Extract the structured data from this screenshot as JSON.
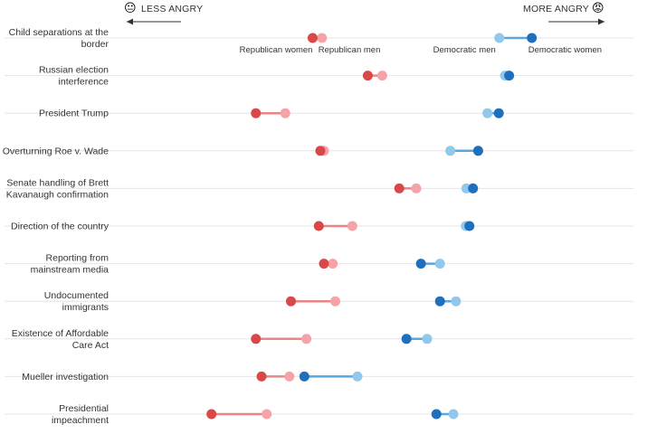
{
  "chart_data": {
    "type": "dumbbell",
    "scale": {
      "left_label": "LESS ANGRY",
      "right_label": "MORE ANGRY",
      "left_emoji": "😐",
      "right_emoji": "😡",
      "range": [
        0,
        100
      ]
    },
    "series": [
      {
        "name": "Republican women",
        "color": "#d94848"
      },
      {
        "name": "Republican men",
        "color": "#f5a3a8"
      },
      {
        "name": "Democratic men",
        "color": "#92c8eb"
      },
      {
        "name": "Democratic women",
        "color": "#1f6fbf"
      }
    ],
    "connector_colors": {
      "republican": "#e98585",
      "democratic": "#5aa7e0"
    },
    "rows": [
      {
        "label": [
          "Child separations at the",
          "border"
        ],
        "rep_women": 37.8,
        "rep_men": 39.6,
        "dem_men": 74.0,
        "dem_women": 80.3
      },
      {
        "label": [
          "Russian election",
          "interference"
        ],
        "rep_women": 48.5,
        "rep_men": 51.3,
        "dem_men": 75.1,
        "dem_women": 75.9
      },
      {
        "label": [
          "President Trump"
        ],
        "rep_women": 26.8,
        "rep_men": 32.5,
        "dem_men": 71.7,
        "dem_women": 73.9
      },
      {
        "label": [
          "Overturning Roe v. Wade"
        ],
        "rep_women": 39.3,
        "rep_men": 40.0,
        "dem_men": 64.5,
        "dem_women": 69.9
      },
      {
        "label": [
          "Senate handling of Brett",
          "Kavanaugh confirmation"
        ],
        "rep_women": 54.6,
        "rep_men": 57.9,
        "dem_men": 67.6,
        "dem_women": 68.9
      },
      {
        "label": [
          "Direction of the country"
        ],
        "rep_women": 39.0,
        "rep_men": 45.5,
        "dem_men": 67.5,
        "dem_women": 68.2
      },
      {
        "label": [
          "Reporting from",
          "mainstream media"
        ],
        "rep_women": 40.0,
        "rep_men": 41.7,
        "dem_men": 62.5,
        "dem_women": 58.8
      },
      {
        "label": [
          "Undocumented",
          "immigrants"
        ],
        "rep_women": 33.6,
        "rep_men": 42.2,
        "dem_men": 65.6,
        "dem_women": 62.5
      },
      {
        "label": [
          "Existence of Affordable",
          "Care Act"
        ],
        "rep_women": 26.8,
        "rep_men": 36.6,
        "dem_men": 60.0,
        "dem_women": 56.0
      },
      {
        "label": [
          "Mueller investigation"
        ],
        "rep_women": 27.9,
        "rep_men": 33.3,
        "dem_men": 46.5,
        "dem_women": 36.2
      },
      {
        "label": [
          "Presidential",
          "impeachment"
        ],
        "rep_women": 18.2,
        "rep_men": 28.9,
        "dem_men": 65.1,
        "dem_women": 61.8
      }
    ]
  }
}
